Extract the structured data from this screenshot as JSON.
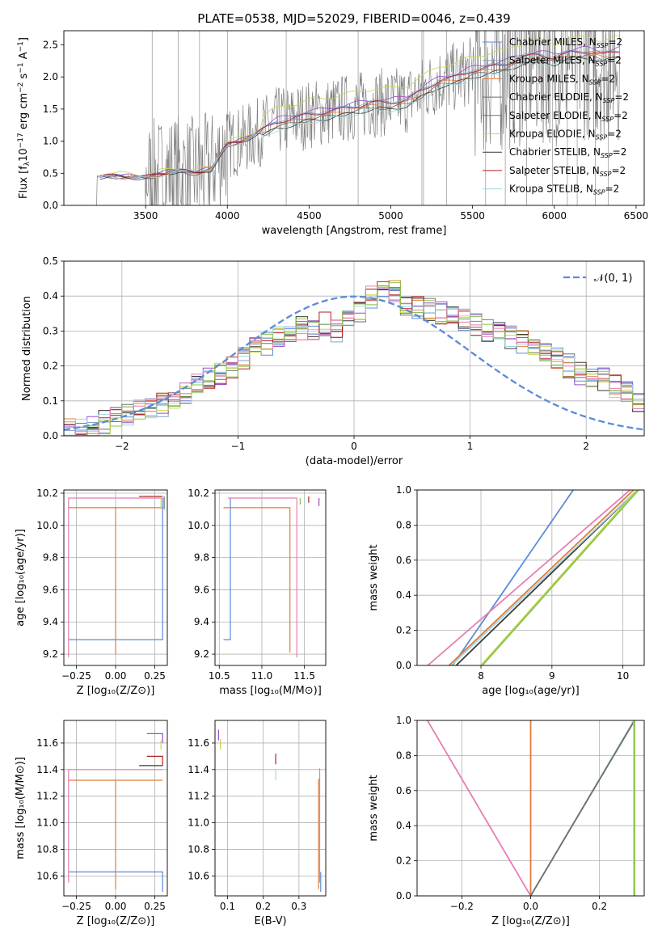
{
  "title": "PLATE=0538, MJD=52029, FIBERID=0046, z=0.439",
  "colors": {
    "c0": "#5b8bd9",
    "c1": "#86a3c8",
    "c2": "#e07b39",
    "c3": "#6e6e6e",
    "c4": "#9b4fc4",
    "c5": "#c8d64f",
    "c6": "#3a3a3a",
    "c7": "#b22222",
    "c8": "#9fd6e0",
    "c9": "#e47fb4",
    "c10": "#8bc34a",
    "data": "#808080",
    "gauss": "#5b8bd9"
  },
  "chart_data": [
    {
      "id": "spectrum",
      "type": "line",
      "title": "PLATE=0538, MJD=52029, FIBERID=0046, z=0.439",
      "xlabel": "wavelength [Angstrom, rest frame]",
      "ylabel": "Flux [f",
      "xlim": [
        3000,
        6550
      ],
      "ylim": [
        0,
        2.72
      ],
      "xticks": [
        3500,
        4000,
        4500,
        5000,
        5500,
        6000,
        6500
      ],
      "yticks": [
        0.0,
        0.5,
        1.0,
        1.5,
        2.0,
        2.5
      ],
      "legend_placement": "top-right",
      "legend": [
        "Chabrier MILES, N_SSP=2",
        "Salpeter MILES, N_SSP=2",
        "Kroupa MILES, N_SSP=2",
        "Chabrier ELODIE, N_SSP=2",
        "Salpeter ELODIE, N_SSP=2",
        "Kroupa ELODIE, N_SSP=2",
        "Chabrier STELIB, N_SSP=2",
        "Salpeter STELIB, N_SSP=2",
        "Kroupa STELIB, N_SSP=2"
      ],
      "model_continuum": {
        "x": [
          3200,
          3300,
          3400,
          3500,
          3600,
          3700,
          3800,
          3900,
          4000,
          4100,
          4200,
          4300,
          4400,
          4500,
          4600,
          4700,
          4800,
          4900,
          5000,
          5100,
          5200,
          5300,
          5400,
          5500,
          5600,
          5700,
          5800,
          5900,
          6000,
          6100,
          6200,
          6300,
          6400
        ],
        "y": [
          0.45,
          0.46,
          0.45,
          0.44,
          0.5,
          0.55,
          0.5,
          0.57,
          0.95,
          1.02,
          1.15,
          1.3,
          1.35,
          1.42,
          1.45,
          1.5,
          1.55,
          1.6,
          1.6,
          1.65,
          1.8,
          1.95,
          2.0,
          2.1,
          2.15,
          2.2,
          2.3,
          2.35,
          2.3,
          2.38,
          2.4,
          2.35,
          2.4
        ]
      }
    },
    {
      "id": "residuals",
      "type": "line",
      "xlabel": "(data-model)/error",
      "ylabel": "Normed distribution",
      "xlim": [
        -2.5,
        2.5
      ],
      "ylim": [
        0,
        0.5
      ],
      "xticks": [
        -2,
        -1,
        0,
        1,
        2
      ],
      "yticks": [
        0.0,
        0.1,
        0.2,
        0.3,
        0.4,
        0.5
      ],
      "legend": [
        "𝒩(0, 1)"
      ],
      "legend_placement": "top-right",
      "bin_centers": [
        -2.45,
        -2.35,
        -2.25,
        -2.15,
        -2.05,
        -1.95,
        -1.85,
        -1.75,
        -1.65,
        -1.55,
        -1.45,
        -1.35,
        -1.25,
        -1.15,
        -1.05,
        -0.95,
        -0.85,
        -0.75,
        -0.65,
        -0.55,
        -0.45,
        -0.35,
        -0.25,
        -0.15,
        -0.05,
        0.05,
        0.15,
        0.25,
        0.35,
        0.45,
        0.55,
        0.65,
        0.75,
        0.85,
        0.95,
        1.05,
        1.15,
        1.25,
        1.35,
        1.45,
        1.55,
        1.65,
        1.75,
        1.85,
        1.95,
        2.05,
        2.15,
        2.25,
        2.35,
        2.45
      ],
      "base_hist": [
        0.02,
        0.02,
        0.03,
        0.04,
        0.05,
        0.06,
        0.07,
        0.08,
        0.09,
        0.1,
        0.12,
        0.15,
        0.17,
        0.18,
        0.2,
        0.22,
        0.25,
        0.26,
        0.28,
        0.29,
        0.31,
        0.31,
        0.32,
        0.3,
        0.33,
        0.36,
        0.4,
        0.42,
        0.41,
        0.38,
        0.37,
        0.36,
        0.35,
        0.34,
        0.33,
        0.32,
        0.3,
        0.29,
        0.28,
        0.27,
        0.26,
        0.24,
        0.22,
        0.2,
        0.18,
        0.17,
        0.16,
        0.14,
        0.12,
        0.1
      ]
    },
    {
      "id": "age_vs_Z",
      "type": "line",
      "xlabel": "Z [log₁₀(Z/Z⊙)]",
      "ylabel": "age  [log₁₀(age/yr)]",
      "xlim": [
        -0.33,
        0.33
      ],
      "ylim": [
        9.13,
        10.22
      ],
      "xticks": [
        -0.25,
        0.0,
        0.25
      ],
      "yticks": [
        9.2,
        9.4,
        9.6,
        9.8,
        10.0,
        10.2
      ]
    },
    {
      "id": "age_vs_mass",
      "type": "line",
      "xlabel": "mass [log₁₀(M/M⊙)]",
      "xlim": [
        10.45,
        11.75
      ],
      "ylim": [
        9.13,
        10.22
      ],
      "xticks": [
        10.5,
        11.0,
        11.5
      ],
      "yticks": [
        9.2,
        9.4,
        9.6,
        9.8,
        10.0,
        10.2
      ]
    },
    {
      "id": "cum_age",
      "type": "line",
      "xlabel": "age  [log₁₀(age/yr)]",
      "ylabel": "mass weight",
      "xlim": [
        7.1,
        10.3
      ],
      "ylim": [
        0,
        1
      ],
      "xticks": [
        8,
        9,
        10
      ],
      "yticks": [
        0.0,
        0.2,
        0.4,
        0.6,
        0.8,
        1.0
      ],
      "series": [
        {
          "color": "c0",
          "x": [
            7.6,
            9.3
          ],
          "y": [
            0,
            1
          ]
        },
        {
          "color": "c9",
          "x": [
            7.25,
            10.1
          ],
          "y": [
            0,
            1
          ]
        },
        {
          "color": "c2",
          "x": [
            7.55,
            10.15
          ],
          "y": [
            0,
            1
          ]
        },
        {
          "color": "c6",
          "x": [
            7.65,
            10.2
          ],
          "y": [
            0,
            1
          ]
        },
        {
          "color": "c8",
          "x": [
            7.58,
            10.2
          ],
          "y": [
            0,
            1
          ]
        },
        {
          "color": "c5",
          "x": [
            8.0,
            10.2
          ],
          "y": [
            0,
            1
          ]
        },
        {
          "color": "c10",
          "x": [
            8.02,
            10.22
          ],
          "y": [
            0,
            1
          ]
        }
      ]
    },
    {
      "id": "mass_vs_Z",
      "type": "line",
      "xlabel": "Z [log₁₀(Z/Z⊙)]",
      "ylabel": "mass [log₁₀(M/M⊙)]",
      "xlim": [
        -0.33,
        0.33
      ],
      "ylim": [
        10.45,
        11.77
      ],
      "xticks": [
        -0.25,
        0.0,
        0.25
      ],
      "yticks": [
        10.6,
        10.8,
        11.0,
        11.2,
        11.4,
        11.6
      ]
    },
    {
      "id": "mass_vs_ebv",
      "type": "line",
      "xlabel": "E(B-V)",
      "xlim": [
        0.065,
        0.375
      ],
      "ylim": [
        10.45,
        11.77
      ],
      "xticks": [
        0.1,
        0.2,
        0.3
      ],
      "yticks": [
        10.6,
        10.8,
        11.0,
        11.2,
        11.4,
        11.6
      ]
    },
    {
      "id": "cum_Z",
      "type": "line",
      "xlabel": "Z [log₁₀(Z/Z⊙)]",
      "ylabel": "mass weight",
      "xlim": [
        -0.33,
        0.33
      ],
      "ylim": [
        0,
        1
      ],
      "xticks": [
        -0.2,
        0.0,
        0.2
      ],
      "yticks": [
        0.0,
        0.2,
        0.4,
        0.6,
        0.8,
        1.0
      ],
      "series": [
        {
          "color": "c9",
          "x": [
            -0.3,
            0.0
          ],
          "y": [
            1,
            0
          ]
        },
        {
          "color": "c2",
          "x": [
            0.0,
            0.0
          ],
          "y": [
            0,
            1
          ]
        },
        {
          "color": "c8",
          "x": [
            0.0,
            0.3
          ],
          "y": [
            0,
            1
          ]
        },
        {
          "color": "c3",
          "x": [
            0.0,
            0.302
          ],
          "y": [
            0,
            1
          ]
        },
        {
          "color": "c5",
          "x": [
            0.3,
            0.3
          ],
          "y": [
            0,
            1
          ]
        },
        {
          "color": "c10",
          "x": [
            0.302,
            0.302
          ],
          "y": [
            0,
            1
          ]
        }
      ]
    }
  ]
}
